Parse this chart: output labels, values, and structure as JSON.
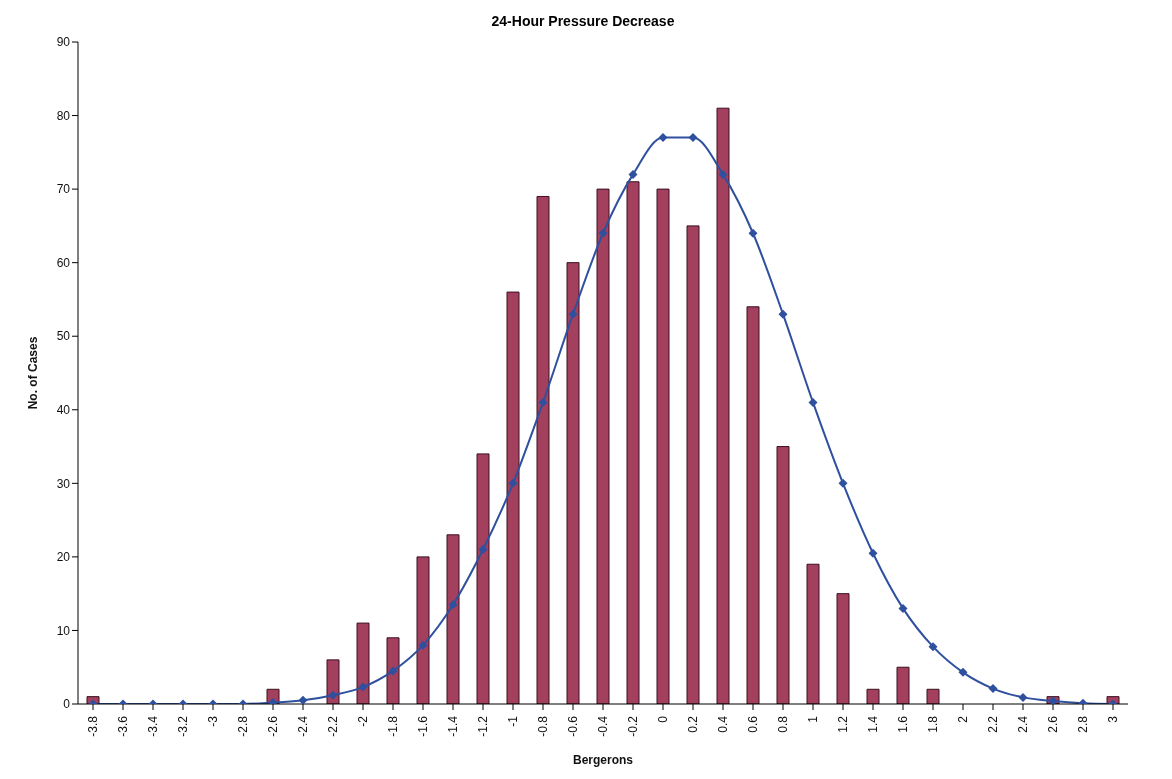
{
  "chart_data": {
    "type": "bar",
    "title": "24-Hour Pressure Decrease",
    "xlabel": "Bergerons",
    "ylabel": "No. of Cases",
    "categories": [
      "-3.8",
      "-3.6",
      "-3.4",
      "-3.2",
      "-3",
      "-2.8",
      "-2.6",
      "-2.4",
      "-2.2",
      "-2",
      "-1.8",
      "-1.6",
      "-1.4",
      "-1.2",
      "-1",
      "-0.8",
      "-0.6",
      "-0.4",
      "-0.2",
      "0",
      "0.2",
      "0.4",
      "0.6",
      "0.8",
      "1",
      "1.2",
      "1.4",
      "1.6",
      "1.8",
      "2",
      "2.2",
      "2.4",
      "2.6",
      "2.8",
      "3"
    ],
    "series": [
      {
        "color": "#a3405e",
        "values": [
          1,
          0,
          0,
          0,
          0,
          0,
          2,
          0,
          6,
          11,
          9,
          20,
          23,
          34,
          56,
          69,
          60,
          70,
          71,
          70,
          65,
          81,
          54,
          35,
          19,
          15,
          2,
          5,
          2,
          0,
          0,
          0,
          1,
          0,
          1
        ]
      },
      {
        "type": "line",
        "color": "#2f4f9f",
        "marker": "diamond",
        "values": [
          0,
          0,
          0,
          0,
          0,
          0,
          0.2,
          0.5,
          1.2,
          2.3,
          4.5,
          8,
          13.5,
          21,
          30,
          41,
          53,
          64,
          72,
          77,
          77,
          72,
          64,
          53,
          41,
          30,
          20.5,
          13,
          7.8,
          4.3,
          2.1,
          0.9,
          0.4,
          0.1,
          0
        ]
      }
    ],
    "ylim": [
      0,
      90
    ],
    "yticks": [
      0,
      10,
      20,
      30,
      40,
      50,
      60,
      70,
      80,
      90
    ],
    "grid": false,
    "legend": false
  }
}
